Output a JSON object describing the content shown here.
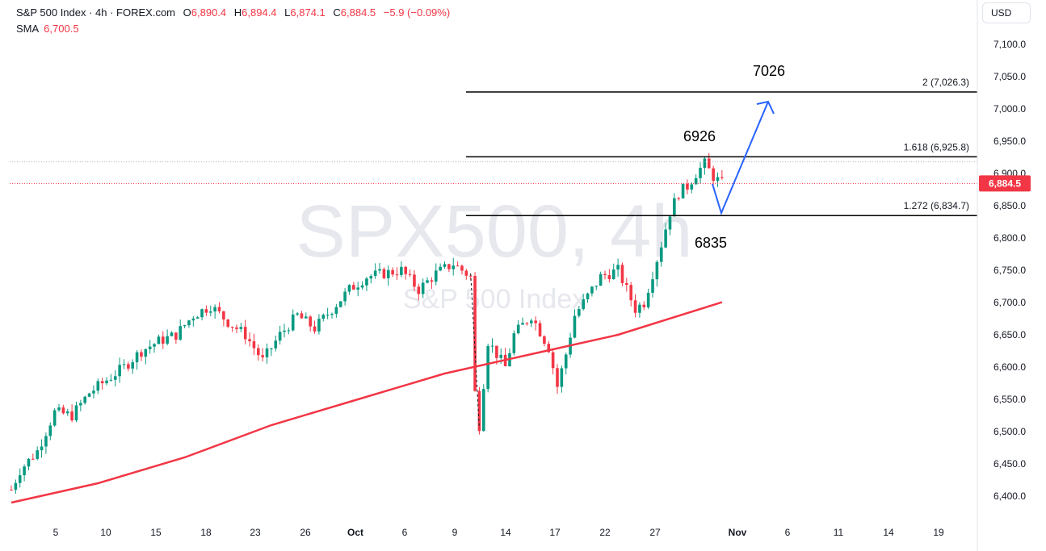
{
  "header": {
    "symbol": "S&P 500 Index · 4h · FOREX.com",
    "open_label": "O",
    "open": "6,890.4",
    "high_label": "H",
    "high": "6,894.4",
    "low_label": "L",
    "low": "6,874.1",
    "close_label": "C",
    "close": "6,884.5",
    "change": "−5.9 (−0.09%)",
    "sma_label": "SMA",
    "sma_value": "6,700.5"
  },
  "currency": "USD",
  "watermark": {
    "main": "SPX500, 4h",
    "sub": "S&P 500 Index"
  },
  "chart_data": {
    "type": "candlestick",
    "y_range": [
      6370,
      7140
    ],
    "y_ticks": [
      "7,100.0",
      "7,050.0",
      "7,000.0",
      "6,950.0",
      "6,900.0",
      "6,850.0",
      "6,800.0",
      "6,750.0",
      "6,700.0",
      "6,650.0",
      "6,600.0",
      "6,550.0",
      "6,500.0",
      "6,450.0",
      "6,400.0"
    ],
    "y_tick_values": [
      7100,
      7050,
      7000,
      6950,
      6900,
      6850,
      6800,
      6750,
      6700,
      6650,
      6600,
      6550,
      6500,
      6450,
      6400
    ],
    "x_ticks": [
      "5",
      "10",
      "15",
      "18",
      "23",
      "26",
      "Oct",
      "6",
      "9",
      "14",
      "17",
      "22",
      "27",
      "Nov",
      "6",
      "11",
      "14",
      "19"
    ],
    "last_price": "6,884.5",
    "last_price_value": 6884.5,
    "price_path": [
      {
        "d": 0,
        "v": 6410
      },
      {
        "d": 1,
        "v": 6440
      },
      {
        "d": 3,
        "v": 6470
      },
      {
        "d": 5,
        "v": 6530
      },
      {
        "d": 7,
        "v": 6525
      },
      {
        "d": 9,
        "v": 6560
      },
      {
        "d": 11,
        "v": 6580
      },
      {
        "d": 13,
        "v": 6600
      },
      {
        "d": 15,
        "v": 6625
      },
      {
        "d": 17,
        "v": 6640
      },
      {
        "d": 19,
        "v": 6650
      },
      {
        "d": 21,
        "v": 6680
      },
      {
        "d": 23,
        "v": 6695
      },
      {
        "d": 25,
        "v": 6670
      },
      {
        "d": 27,
        "v": 6650
      },
      {
        "d": 29,
        "v": 6610
      },
      {
        "d": 31,
        "v": 6650
      },
      {
        "d": 33,
        "v": 6680
      },
      {
        "d": 35,
        "v": 6660
      },
      {
        "d": 37,
        "v": 6690
      },
      {
        "d": 39,
        "v": 6720
      },
      {
        "d": 41,
        "v": 6740
      },
      {
        "d": 43,
        "v": 6745
      },
      {
        "d": 45,
        "v": 6750
      },
      {
        "d": 47,
        "v": 6720
      },
      {
        "d": 49,
        "v": 6745
      },
      {
        "d": 51,
        "v": 6760
      },
      {
        "d": 53,
        "v": 6740
      },
      {
        "d": 53.5,
        "v": 6560
      },
      {
        "d": 54,
        "v": 6510
      },
      {
        "d": 55,
        "v": 6640
      },
      {
        "d": 57,
        "v": 6600
      },
      {
        "d": 58,
        "v": 6650
      },
      {
        "d": 60,
        "v": 6680
      },
      {
        "d": 62,
        "v": 6630
      },
      {
        "d": 63,
        "v": 6570
      },
      {
        "d": 64,
        "v": 6620
      },
      {
        "d": 65,
        "v": 6680
      },
      {
        "d": 66,
        "v": 6700
      },
      {
        "d": 68,
        "v": 6740
      },
      {
        "d": 70,
        "v": 6750
      },
      {
        "d": 71,
        "v": 6720
      },
      {
        "d": 72,
        "v": 6690
      },
      {
        "d": 73,
        "v": 6700
      },
      {
        "d": 75,
        "v": 6790
      },
      {
        "d": 76,
        "v": 6840
      },
      {
        "d": 77,
        "v": 6870
      },
      {
        "d": 78,
        "v": 6880
      },
      {
        "d": 79,
        "v": 6900
      },
      {
        "d": 80,
        "v": 6915
      },
      {
        "d": 81,
        "v": 6895
      },
      {
        "d": 82,
        "v": 6884.5
      }
    ],
    "sma": [
      {
        "d": 0,
        "v": 6390
      },
      {
        "d": 10,
        "v": 6420
      },
      {
        "d": 20,
        "v": 6460
      },
      {
        "d": 30,
        "v": 6510
      },
      {
        "d": 40,
        "v": 6550
      },
      {
        "d": 50,
        "v": 6590
      },
      {
        "d": 60,
        "v": 6620
      },
      {
        "d": 70,
        "v": 6650
      },
      {
        "d": 82,
        "v": 6700.5
      }
    ],
    "fib_levels": [
      {
        "label": "2 (7,026.3)",
        "value": 7026.3
      },
      {
        "label": "1.618 (6,925.8)",
        "value": 6925.8
      },
      {
        "label": "1.272 (6,834.7)",
        "value": 6834.7
      }
    ],
    "annotations": [
      {
        "text": "7026",
        "x": 952,
        "y": 88
      },
      {
        "text": "6926",
        "x": 866,
        "y": 169
      },
      {
        "text": "6835",
        "x": 880,
        "y": 301
      }
    ],
    "projection": [
      {
        "x": 882,
        "y": 228
      },
      {
        "x": 893,
        "y": 264
      },
      {
        "x": 951,
        "y": 126
      },
      {
        "x": 958,
        "y": 141
      }
    ],
    "colors": {
      "up": "#089981",
      "down": "#f23645",
      "sma": "#f23645",
      "projection": "#2962ff",
      "fib": "#000000"
    }
  }
}
